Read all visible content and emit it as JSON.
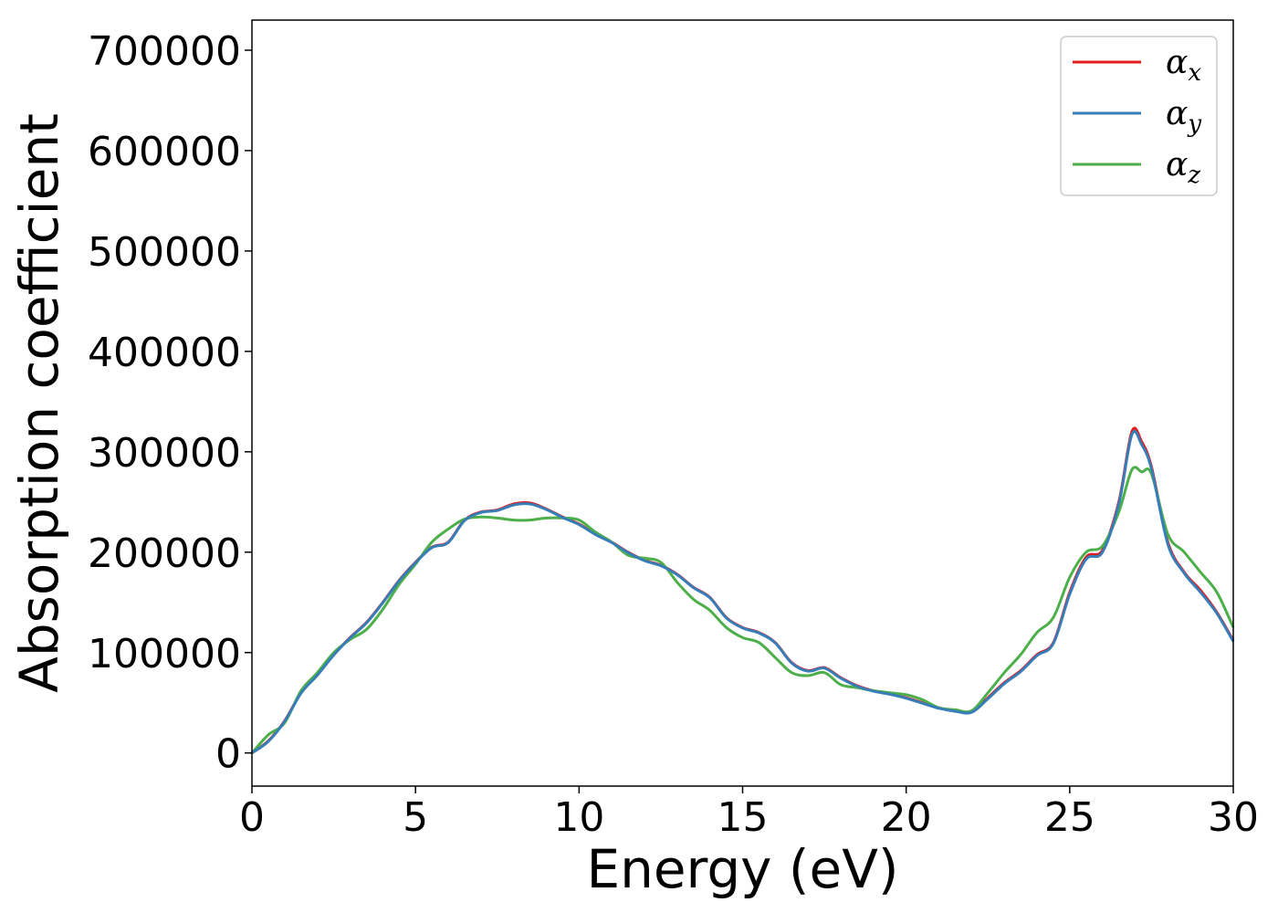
{
  "chart_data": {
    "type": "line",
    "xlabel": "Energy (eV)",
    "ylabel": "Absorption coefficient",
    "xlim": [
      0,
      30
    ],
    "ylim": [
      -33000,
      730000
    ],
    "xticks": [
      0,
      5,
      10,
      15,
      20,
      25,
      30
    ],
    "yticks": [
      0,
      100000,
      200000,
      300000,
      400000,
      500000,
      600000,
      700000
    ],
    "grid": false,
    "legend_position": "top-right",
    "series": [
      {
        "name": "α_x",
        "symbol": "α",
        "subscript": "x",
        "color": "#e41a1c",
        "x": [
          0,
          0.5,
          1,
          1.5,
          2,
          2.5,
          3,
          3.5,
          4,
          4.5,
          5,
          5.5,
          6,
          6.5,
          7,
          7.5,
          8,
          8.5,
          9,
          9.5,
          10,
          10.5,
          11,
          11.5,
          12,
          12.5,
          13,
          13.5,
          14,
          14.5,
          15,
          15.5,
          16,
          16.5,
          17,
          17.5,
          18,
          18.5,
          19,
          19.5,
          20,
          20.5,
          21,
          21.5,
          22,
          22.5,
          23,
          23.5,
          24,
          24.5,
          25,
          25.5,
          26,
          26.5,
          26.9,
          27.2,
          27.5,
          28,
          28.5,
          29,
          29.5,
          30
        ],
        "values": [
          0,
          12000,
          32000,
          60000,
          78000,
          98000,
          115000,
          130000,
          150000,
          172000,
          190000,
          205000,
          210000,
          232000,
          240000,
          242000,
          248000,
          249000,
          243000,
          235000,
          228000,
          218000,
          210000,
          200000,
          192000,
          187000,
          178000,
          165000,
          155000,
          135000,
          125000,
          120000,
          110000,
          90000,
          82000,
          85000,
          75000,
          67000,
          62000,
          59000,
          55000,
          50000,
          45000,
          42000,
          41000,
          55000,
          70000,
          82000,
          98000,
          110000,
          160000,
          195000,
          202000,
          250000,
          320000,
          310000,
          285000,
          210000,
          180000,
          162000,
          140000,
          112000
        ]
      },
      {
        "name": "α_y",
        "symbol": "α",
        "subscript": "y",
        "color": "#377eb8",
        "x": [
          0,
          0.5,
          1,
          1.5,
          2,
          2.5,
          3,
          3.5,
          4,
          4.5,
          5,
          5.5,
          6,
          6.5,
          7,
          7.5,
          8,
          8.5,
          9,
          9.5,
          10,
          10.5,
          11,
          11.5,
          12,
          12.5,
          13,
          13.5,
          14,
          14.5,
          15,
          15.5,
          16,
          16.5,
          17,
          17.5,
          18,
          18.5,
          19,
          19.5,
          20,
          20.5,
          21,
          21.5,
          22,
          22.5,
          23,
          23.5,
          24,
          24.5,
          25,
          25.5,
          26,
          26.5,
          26.9,
          27.2,
          27.5,
          28,
          28.5,
          29,
          29.5,
          30
        ],
        "values": [
          0,
          11500,
          31500,
          59500,
          77500,
          97500,
          114500,
          129500,
          149500,
          171500,
          189500,
          204500,
          209500,
          231500,
          239500,
          241500,
          247000,
          248000,
          242500,
          234500,
          227500,
          217500,
          209500,
          199500,
          191500,
          186500,
          177500,
          164500,
          154500,
          134500,
          124500,
          119500,
          109500,
          89500,
          81500,
          84500,
          74500,
          66500,
          61500,
          58500,
          54500,
          49500,
          44500,
          41500,
          40500,
          54000,
          69000,
          81000,
          97000,
          109000,
          158000,
          193000,
          200000,
          248000,
          317000,
          307000,
          283000,
          208000,
          179000,
          160000,
          139000,
          111000
        ]
      },
      {
        "name": "α_z",
        "symbol": "α",
        "subscript": "z",
        "color": "#4daf4a",
        "x": [
          0,
          0.5,
          1,
          1.5,
          2,
          2.5,
          3,
          3.5,
          4,
          4.5,
          5,
          5.5,
          6,
          6.5,
          7,
          7.5,
          8,
          8.5,
          9,
          9.5,
          10,
          10.5,
          11,
          11.5,
          12,
          12.5,
          13,
          13.5,
          14,
          14.5,
          15,
          15.5,
          16,
          16.5,
          17,
          17.5,
          18,
          18.5,
          19,
          19.5,
          20,
          20.5,
          21,
          21.5,
          22,
          22.5,
          23,
          23.5,
          24,
          24.5,
          25,
          25.5,
          26,
          26.5,
          26.9,
          27.2,
          27.5,
          28,
          28.5,
          29,
          29.5,
          30
        ],
        "values": [
          0,
          18000,
          30000,
          62000,
          80000,
          100000,
          113000,
          123000,
          143000,
          168000,
          188000,
          210000,
          223000,
          233000,
          235000,
          234000,
          232000,
          232000,
          234000,
          234000,
          232000,
          220000,
          210000,
          197000,
          194000,
          190000,
          170000,
          153000,
          142000,
          125000,
          115000,
          110000,
          95000,
          80000,
          77000,
          80000,
          68000,
          65000,
          62000,
          60000,
          58000,
          53000,
          45000,
          43000,
          42000,
          60000,
          80000,
          98000,
          120000,
          135000,
          175000,
          200000,
          206000,
          240000,
          282000,
          280000,
          278000,
          218000,
          200000,
          180000,
          160000,
          125000
        ]
      }
    ]
  }
}
